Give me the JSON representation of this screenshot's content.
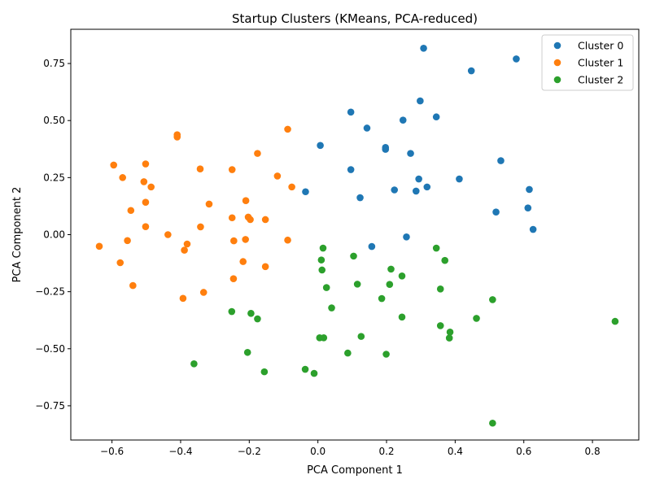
{
  "chart_data": {
    "type": "scatter",
    "title": "Startup Clusters (KMeans, PCA-reduced)",
    "xlabel": "PCA Component 1",
    "ylabel": "PCA Component 2",
    "xlim": [
      -0.72,
      0.935
    ],
    "ylim": [
      -0.9,
      0.9
    ],
    "xticks": [
      -0.6,
      -0.4,
      -0.2,
      0.0,
      0.2,
      0.4,
      0.6,
      0.8
    ],
    "xtick_labels": [
      "−0.6",
      "−0.4",
      "−0.2",
      "0.0",
      "0.2",
      "0.4",
      "0.6",
      "0.8"
    ],
    "yticks": [
      -0.75,
      -0.5,
      -0.25,
      0.0,
      0.25,
      0.5,
      0.75
    ],
    "ytick_labels": [
      "−0.75",
      "−0.50",
      "−0.25",
      "0.00",
      "0.25",
      "0.50",
      "0.75"
    ],
    "grid": false,
    "legend_position": "top-right",
    "series": [
      {
        "name": "Cluster 0",
        "color": "#1f77b4",
        "points": [
          [
            0.308,
            0.817
          ],
          [
            0.578,
            0.77
          ],
          [
            0.447,
            0.718
          ],
          [
            0.096,
            0.537
          ],
          [
            0.298,
            0.586
          ],
          [
            0.345,
            0.516
          ],
          [
            0.248,
            0.502
          ],
          [
            0.143,
            0.467
          ],
          [
            0.007,
            0.391
          ],
          [
            0.197,
            0.382
          ],
          [
            0.197,
            0.374
          ],
          [
            0.27,
            0.356
          ],
          [
            0.533,
            0.324
          ],
          [
            0.096,
            0.285
          ],
          [
            0.294,
            0.244
          ],
          [
            0.412,
            0.244
          ],
          [
            0.318,
            0.209
          ],
          [
            0.223,
            0.196
          ],
          [
            0.286,
            0.191
          ],
          [
            0.616,
            0.198
          ],
          [
            -0.036,
            0.188
          ],
          [
            0.123,
            0.162
          ],
          [
            0.612,
            0.117
          ],
          [
            0.519,
            0.099
          ],
          [
            0.627,
            0.023
          ],
          [
            0.258,
            -0.01
          ],
          [
            0.157,
            -0.052
          ]
        ]
      },
      {
        "name": "Cluster 1",
        "color": "#ff7f0e",
        "points": [
          [
            -0.41,
            0.438
          ],
          [
            -0.41,
            0.428
          ],
          [
            -0.088,
            0.462
          ],
          [
            -0.176,
            0.356
          ],
          [
            -0.595,
            0.305
          ],
          [
            -0.502,
            0.31
          ],
          [
            -0.343,
            0.288
          ],
          [
            -0.25,
            0.285
          ],
          [
            -0.569,
            0.25
          ],
          [
            -0.118,
            0.257
          ],
          [
            -0.507,
            0.232
          ],
          [
            -0.486,
            0.209
          ],
          [
            -0.076,
            0.209
          ],
          [
            -0.21,
            0.149
          ],
          [
            -0.502,
            0.142
          ],
          [
            -0.317,
            0.134
          ],
          [
            -0.545,
            0.106
          ],
          [
            -0.25,
            0.074
          ],
          [
            -0.203,
            0.077
          ],
          [
            -0.197,
            0.066
          ],
          [
            -0.153,
            0.066
          ],
          [
            -0.502,
            0.035
          ],
          [
            -0.342,
            0.034
          ],
          [
            -0.437,
            0.0
          ],
          [
            -0.637,
            -0.051
          ],
          [
            -0.555,
            -0.026
          ],
          [
            -0.245,
            -0.027
          ],
          [
            -0.211,
            -0.021
          ],
          [
            -0.088,
            -0.024
          ],
          [
            -0.381,
            -0.041
          ],
          [
            -0.389,
            -0.068
          ],
          [
            -0.576,
            -0.123
          ],
          [
            -0.218,
            -0.118
          ],
          [
            -0.153,
            -0.14
          ],
          [
            -0.246,
            -0.193
          ],
          [
            -0.539,
            -0.223
          ],
          [
            -0.333,
            -0.253
          ],
          [
            -0.393,
            -0.279
          ]
        ]
      },
      {
        "name": "Cluster 2",
        "color": "#2ca02c",
        "points": [
          [
            0.015,
            -0.059
          ],
          [
            0.345,
            -0.059
          ],
          [
            0.104,
            -0.094
          ],
          [
            0.01,
            -0.111
          ],
          [
            0.37,
            -0.113
          ],
          [
            0.012,
            -0.155
          ],
          [
            0.213,
            -0.151
          ],
          [
            0.245,
            -0.181
          ],
          [
            0.115,
            -0.217
          ],
          [
            0.209,
            -0.218
          ],
          [
            0.025,
            -0.232
          ],
          [
            0.357,
            -0.238
          ],
          [
            0.186,
            -0.28
          ],
          [
            0.509,
            -0.285
          ],
          [
            0.04,
            -0.321
          ],
          [
            -0.251,
            -0.337
          ],
          [
            -0.195,
            -0.345
          ],
          [
            -0.176,
            -0.369
          ],
          [
            0.245,
            -0.361
          ],
          [
            0.462,
            -0.367
          ],
          [
            0.866,
            -0.38
          ],
          [
            0.357,
            -0.399
          ],
          [
            0.385,
            -0.427
          ],
          [
            0.005,
            -0.452
          ],
          [
            0.017,
            -0.452
          ],
          [
            0.126,
            -0.446
          ],
          [
            0.383,
            -0.453
          ],
          [
            -0.205,
            -0.516
          ],
          [
            0.087,
            -0.519
          ],
          [
            0.199,
            -0.524
          ],
          [
            -0.361,
            -0.566
          ],
          [
            -0.037,
            -0.59
          ],
          [
            -0.156,
            -0.601
          ],
          [
            -0.011,
            -0.608
          ],
          [
            0.509,
            -0.826
          ]
        ]
      }
    ]
  }
}
